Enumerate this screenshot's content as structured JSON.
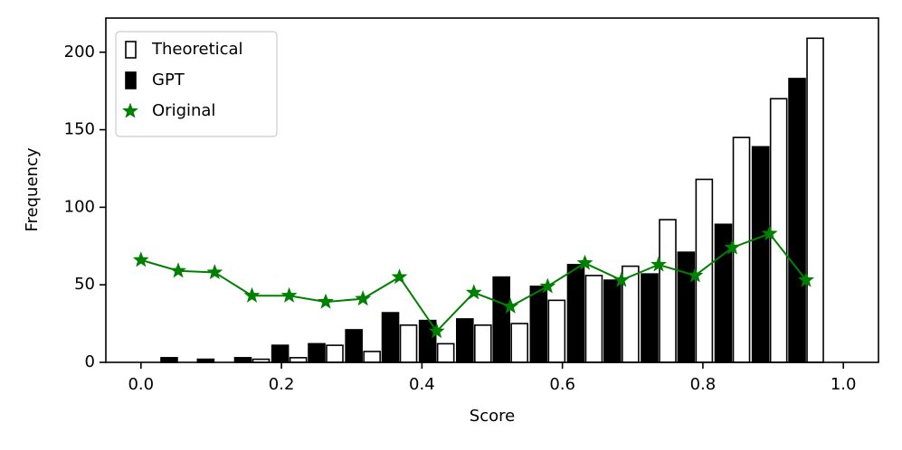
{
  "chart_data": {
    "type": "bar",
    "xlabel": "Score",
    "ylabel": "Frequency",
    "xlim": [
      -0.05,
      1.05
    ],
    "ylim": [
      0,
      222
    ],
    "xticks": [
      {
        "value": 0,
        "label": "0.0"
      },
      0.2,
      0.4,
      0.6,
      0.8,
      {
        "value": 1,
        "label": "1.0"
      }
    ],
    "yticks": [
      0,
      50,
      100,
      150,
      200
    ],
    "legend": "upper left",
    "series": [
      {
        "name": "Theoretical",
        "type": "bar",
        "color": "#ffffff",
        "edgecolor": "#000000",
        "x": [
          0.053,
          0.105,
          0.158,
          0.211,
          0.263,
          0.316,
          0.368,
          0.421,
          0.474,
          0.526,
          0.579,
          0.632,
          0.684,
          0.737,
          0.789,
          0.842,
          0.895,
          0.947
        ],
        "values": [
          0,
          0,
          2,
          3,
          11,
          7,
          24,
          12,
          24,
          25,
          40,
          56,
          62,
          92,
          118,
          145,
          170,
          209
        ]
      },
      {
        "name": "GPT",
        "type": "bar",
        "color": "#000000",
        "edgecolor": "#000000",
        "x": [
          0.053,
          0.105,
          0.158,
          0.211,
          0.263,
          0.316,
          0.368,
          0.421,
          0.474,
          0.526,
          0.579,
          0.632,
          0.684,
          0.737,
          0.789,
          0.842,
          0.895,
          0.947
        ],
        "values": [
          3,
          2,
          3,
          11,
          12,
          21,
          32,
          27,
          28,
          55,
          49,
          63,
          53,
          57,
          71,
          89,
          139,
          183
        ]
      },
      {
        "name": "Original",
        "type": "line",
        "color": "#008000",
        "x": [
          0,
          0.053,
          0.105,
          0.158,
          0.211,
          0.263,
          0.316,
          0.368,
          0.421,
          0.474,
          0.526,
          0.579,
          0.632,
          0.684,
          0.737,
          0.789,
          0.842,
          0.895,
          0.947
        ],
        "values": [
          66,
          59,
          58,
          43,
          43,
          39,
          41,
          55,
          20,
          45,
          36,
          49,
          64,
          53,
          63,
          56,
          74,
          83,
          53
        ]
      }
    ]
  }
}
